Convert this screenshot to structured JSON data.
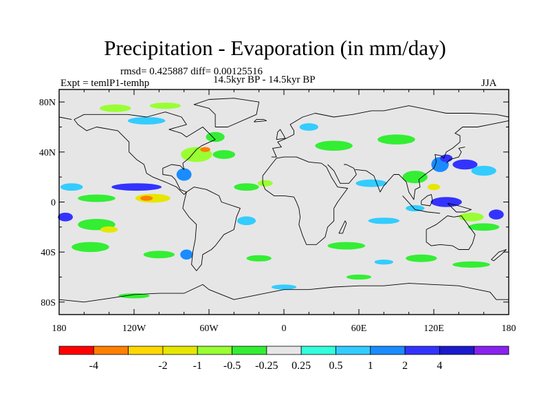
{
  "chart_data": {
    "type": "heatmap",
    "title": "Precipitation - Evaporation (in mm/day)",
    "stats_line": "rmsd= 0.425887 diff= 0.00125516",
    "experiment_label": "Expt = temlP1-temhp",
    "period_label": "14.5kyr BP - 14.5kyr BP",
    "season_label": "JJA",
    "x_axis": {
      "range": [
        -180,
        180
      ],
      "tick_values": [
        -180,
        -120,
        -60,
        0,
        60,
        120,
        180
      ],
      "tick_labels": [
        "180",
        "120W",
        "60W",
        "0",
        "60E",
        "120E",
        "180"
      ]
    },
    "y_axis": {
      "range": [
        -90,
        90
      ],
      "tick_values": [
        80,
        40,
        0,
        -40,
        -80
      ],
      "tick_labels": [
        "80N",
        "40N",
        "0",
        "40S",
        "80S"
      ]
    },
    "colorbar": {
      "colors": [
        "#ff0000",
        "#ff8000",
        "#ffd700",
        "#e6e600",
        "#99ff33",
        "#33ee33",
        "#e6e6e6",
        "#33ffdd",
        "#33ccff",
        "#1a8cff",
        "#3333ff",
        "#1a1acc",
        "#8822ee"
      ],
      "labels": [
        "-4",
        "-2",
        "-1",
        "-0.5",
        "-0.25",
        "0.25",
        "0.5",
        "1",
        "2",
        "4"
      ],
      "label_bins": [
        1,
        3,
        4,
        5,
        6,
        7,
        8,
        9,
        10,
        11
      ]
    },
    "anomaly_regions": [
      {
        "lon": -118,
        "lat": 12,
        "w": 40,
        "h": 6,
        "bin": 10
      },
      {
        "lon": -170,
        "lat": 12,
        "w": 18,
        "h": 6,
        "bin": 8
      },
      {
        "lon": -105,
        "lat": 3,
        "w": 28,
        "h": 7,
        "bin": 3
      },
      {
        "lon": -110,
        "lat": 3,
        "w": 10,
        "h": 4,
        "bin": 1
      },
      {
        "lon": -150,
        "lat": 3,
        "w": 30,
        "h": 6,
        "bin": 5
      },
      {
        "lon": -80,
        "lat": 22,
        "w": 12,
        "h": 10,
        "bin": 9
      },
      {
        "lon": -70,
        "lat": 38,
        "w": 25,
        "h": 12,
        "bin": 4
      },
      {
        "lon": -63,
        "lat": 42,
        "w": 8,
        "h": 4,
        "bin": 1
      },
      {
        "lon": -48,
        "lat": 38,
        "w": 18,
        "h": 7,
        "bin": 5
      },
      {
        "lon": -55,
        "lat": 52,
        "w": 15,
        "h": 8,
        "bin": 5
      },
      {
        "lon": -110,
        "lat": 65,
        "w": 30,
        "h": 6,
        "bin": 8
      },
      {
        "lon": -135,
        "lat": 75,
        "w": 25,
        "h": 6,
        "bin": 4
      },
      {
        "lon": -95,
        "lat": 77,
        "w": 25,
        "h": 5,
        "bin": 4
      },
      {
        "lon": -30,
        "lat": 12,
        "w": 20,
        "h": 6,
        "bin": 5
      },
      {
        "lon": -15,
        "lat": 15,
        "w": 12,
        "h": 5,
        "bin": 4
      },
      {
        "lon": -175,
        "lat": -12,
        "w": 12,
        "h": 7,
        "bin": 10
      },
      {
        "lon": -150,
        "lat": -18,
        "w": 30,
        "h": 9,
        "bin": 5
      },
      {
        "lon": -140,
        "lat": -22,
        "w": 14,
        "h": 5,
        "bin": 3
      },
      {
        "lon": -155,
        "lat": -36,
        "w": 30,
        "h": 8,
        "bin": 5
      },
      {
        "lon": -100,
        "lat": -42,
        "w": 25,
        "h": 6,
        "bin": 5
      },
      {
        "lon": -78,
        "lat": -42,
        "w": 10,
        "h": 8,
        "bin": 9
      },
      {
        "lon": -30,
        "lat": -15,
        "w": 15,
        "h": 7,
        "bin": 8
      },
      {
        "lon": -20,
        "lat": -45,
        "w": 20,
        "h": 5,
        "bin": 5
      },
      {
        "lon": -120,
        "lat": -75,
        "w": 25,
        "h": 4,
        "bin": 5
      },
      {
        "lon": 40,
        "lat": 45,
        "w": 30,
        "h": 8,
        "bin": 5
      },
      {
        "lon": 20,
        "lat": 60,
        "w": 15,
        "h": 6,
        "bin": 8
      },
      {
        "lon": 90,
        "lat": 50,
        "w": 30,
        "h": 8,
        "bin": 5
      },
      {
        "lon": 70,
        "lat": 15,
        "w": 25,
        "h": 6,
        "bin": 8
      },
      {
        "lon": 105,
        "lat": 20,
        "w": 20,
        "h": 10,
        "bin": 5
      },
      {
        "lon": 125,
        "lat": 30,
        "w": 14,
        "h": 12,
        "bin": 9
      },
      {
        "lon": 130,
        "lat": 35,
        "w": 10,
        "h": 6,
        "bin": 10
      },
      {
        "lon": 145,
        "lat": 30,
        "w": 20,
        "h": 8,
        "bin": 10
      },
      {
        "lon": 160,
        "lat": 25,
        "w": 20,
        "h": 8,
        "bin": 8
      },
      {
        "lon": 120,
        "lat": 12,
        "w": 10,
        "h": 5,
        "bin": 3
      },
      {
        "lon": 130,
        "lat": 0,
        "w": 25,
        "h": 8,
        "bin": 10
      },
      {
        "lon": 105,
        "lat": -5,
        "w": 15,
        "h": 5,
        "bin": 8
      },
      {
        "lon": 150,
        "lat": -12,
        "w": 20,
        "h": 7,
        "bin": 4
      },
      {
        "lon": 160,
        "lat": -20,
        "w": 25,
        "h": 6,
        "bin": 5
      },
      {
        "lon": 170,
        "lat": -10,
        "w": 12,
        "h": 8,
        "bin": 10
      },
      {
        "lon": 80,
        "lat": -15,
        "w": 25,
        "h": 5,
        "bin": 8
      },
      {
        "lon": 50,
        "lat": -35,
        "w": 30,
        "h": 6,
        "bin": 5
      },
      {
        "lon": 110,
        "lat": -45,
        "w": 25,
        "h": 6,
        "bin": 5
      },
      {
        "lon": 150,
        "lat": -50,
        "w": 30,
        "h": 5,
        "bin": 5
      },
      {
        "lon": 60,
        "lat": -60,
        "w": 20,
        "h": 4,
        "bin": 5
      },
      {
        "lon": 80,
        "lat": -48,
        "w": 15,
        "h": 4,
        "bin": 8
      },
      {
        "lon": 0,
        "lat": -68,
        "w": 20,
        "h": 4,
        "bin": 8
      }
    ]
  }
}
